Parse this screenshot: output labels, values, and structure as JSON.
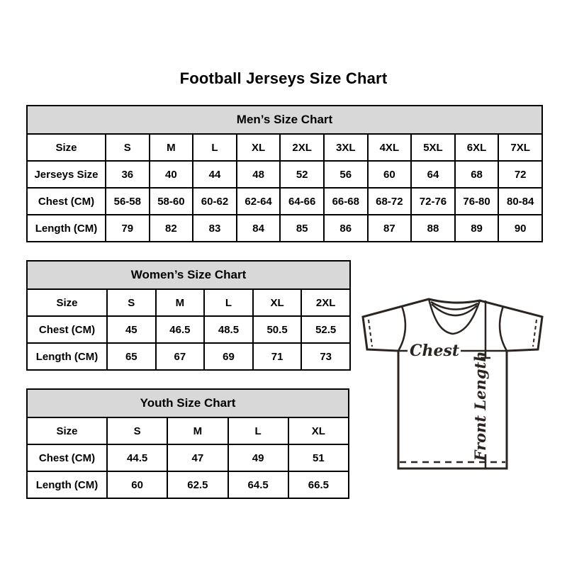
{
  "title": "Football Jerseys Size Chart",
  "colors": {
    "table_header_bg": "#d8d8d8",
    "table_border": "#000000",
    "text": "#000000",
    "jersey_line": "#2b2421"
  },
  "tables": {
    "mens": {
      "title": "Men’s Size Chart",
      "rows": [
        [
          "Size",
          "S",
          "M",
          "L",
          "XL",
          "2XL",
          "3XL",
          "4XL",
          "5XL",
          "6XL",
          "7XL"
        ],
        [
          "Jerseys Size",
          "36",
          "40",
          "44",
          "48",
          "52",
          "56",
          "60",
          "64",
          "68",
          "72"
        ],
        [
          "Chest (CM)",
          "56-58",
          "58-60",
          "60-62",
          "62-64",
          "64-66",
          "66-68",
          "68-72",
          "72-76",
          "76-80",
          "80-84"
        ],
        [
          "Length (CM)",
          "79",
          "82",
          "83",
          "84",
          "85",
          "86",
          "87",
          "88",
          "89",
          "90"
        ]
      ]
    },
    "womens": {
      "title": "Women’s Size Chart",
      "rows": [
        [
          "Size",
          "S",
          "M",
          "L",
          "XL",
          "2XL"
        ],
        [
          "Chest (CM)",
          "45",
          "46.5",
          "48.5",
          "50.5",
          "52.5"
        ],
        [
          "Length (CM)",
          "65",
          "67",
          "69",
          "71",
          "73"
        ]
      ]
    },
    "youth": {
      "title": "Youth Size Chart",
      "rows": [
        [
          "Size",
          "S",
          "M",
          "L",
          "XL"
        ],
        [
          "Chest (CM)",
          "44.5",
          "47",
          "49",
          "51"
        ],
        [
          "Length (CM)",
          "60",
          "62.5",
          "64.5",
          "66.5"
        ]
      ]
    }
  },
  "jersey_diagram": {
    "chest_label": "Chest",
    "front_length_label": "Front Length"
  }
}
